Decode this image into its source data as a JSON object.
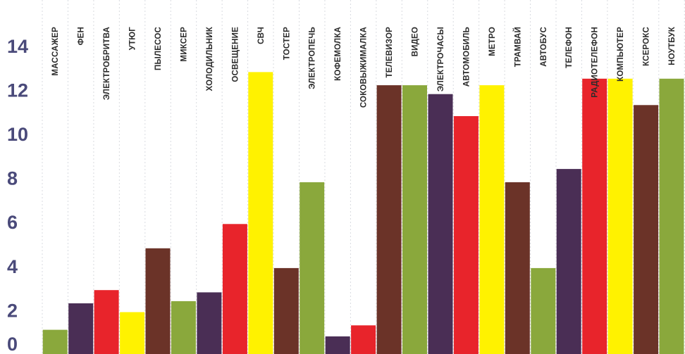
{
  "chart_data": {
    "type": "bar",
    "title": "",
    "xlabel": "",
    "ylabel": "",
    "ylim": [
      0,
      15
    ],
    "yticks": [
      0,
      2,
      4,
      6,
      8,
      10,
      12,
      14
    ],
    "grid": "vertical",
    "legend": "none",
    "palette": {
      "green": "#8aa83c",
      "purple": "#4a2e55",
      "red": "#e8242b",
      "yellow": "#fff200",
      "brown": "#6b3328"
    },
    "categories": [
      "МАССАЖЕР",
      "ФЕН",
      "ЭЛЕКТРОБРИТВА",
      "УТЮГ",
      "ПЫЛЕСОС",
      "МИКСЕР",
      "ХОЛОДИЛЬНИК",
      "ОСВЕЩЕНИЕ",
      "СВЧ",
      "ТОСТЕР",
      "ЭЛЕКТРОПЕЧЬ",
      "КОФЕМОЛКА",
      "СОКОВЫЖИМАЛКА",
      "ТЕЛЕВИЗОР",
      "ВИДЕО",
      "ЭЛЕКТРОЧАСЫ",
      "АВТОМОБИЛЬ",
      "МЕТРО",
      "ТРАМВАЙ",
      "АВТОБУС",
      "ТЕЛЕФОН",
      "РАДИОТЕЛЕФОН",
      "КОМПЬЮТЕР",
      "КСЕРОКС",
      "НОУТБУК"
    ],
    "values": [
      1.1,
      2.3,
      2.9,
      1.9,
      4.8,
      2.4,
      2.8,
      5.9,
      12.8,
      3.9,
      7.8,
      0.8,
      1.3,
      12.2,
      12.2,
      11.8,
      10.8,
      12.2,
      7.8,
      3.9,
      8.4,
      12.5,
      12.5,
      11.3,
      12.5
    ],
    "colors": [
      "green",
      "purple",
      "red",
      "yellow",
      "brown",
      "green",
      "purple",
      "red",
      "yellow",
      "brown",
      "green",
      "purple",
      "red",
      "brown",
      "green",
      "purple",
      "red",
      "yellow",
      "brown",
      "green",
      "purple",
      "red",
      "yellow",
      "brown",
      "green"
    ]
  }
}
